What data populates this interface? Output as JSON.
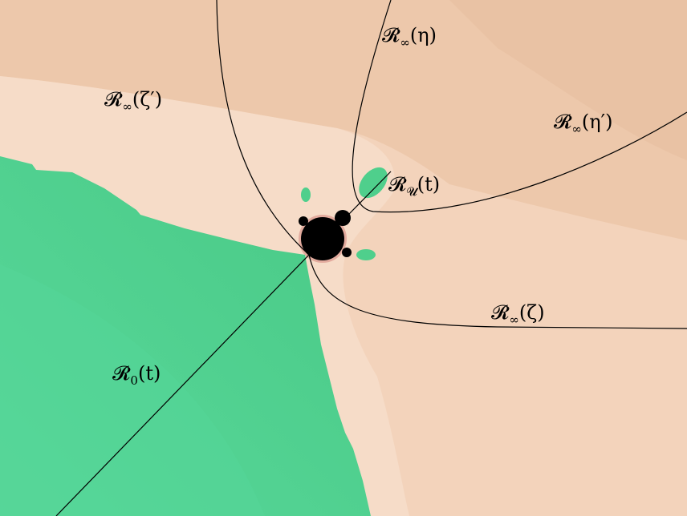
{
  "labels": [
    {
      "symbol": "𝓡",
      "sub": "∞",
      "arg": "(η)"
    },
    {
      "symbol": "𝓡",
      "sub": "∞",
      "arg": "(ζ′)"
    },
    {
      "symbol": "𝓡",
      "sub": "∞",
      "arg": "(η′)"
    },
    {
      "symbol": "𝓡",
      "sub": "𝓤",
      "arg": "(t)"
    },
    {
      "symbol": "𝓡",
      "sub": "∞",
      "arg": "(ζ)"
    },
    {
      "symbol": "𝓡",
      "sub": "0",
      "arg": "(t)"
    }
  ]
}
